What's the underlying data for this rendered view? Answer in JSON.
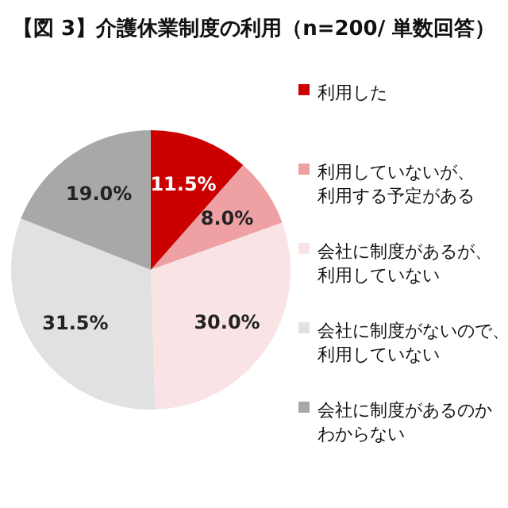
{
  "chart_data": {
    "type": "pie",
    "title": "【図 3】介護休業制度の利用（n=200/ 単数回答）",
    "categories": [
      "利用した",
      "利用していないが、利用する予定がある",
      "会社に制度があるが、利用していない",
      "会社に制度がないので、利用していない",
      "会社に制度があるのかわからない"
    ],
    "values": [
      11.5,
      8.0,
      30.0,
      31.5,
      19.0
    ],
    "colors": [
      "#cc0000",
      "#eea0a3",
      "#fae3e4",
      "#e1e1e1",
      "#a8a8a8"
    ],
    "value_labels": [
      "11.5%",
      "8.0%",
      "30.0%",
      "31.5%",
      "19.0%"
    ],
    "legend": "right"
  }
}
